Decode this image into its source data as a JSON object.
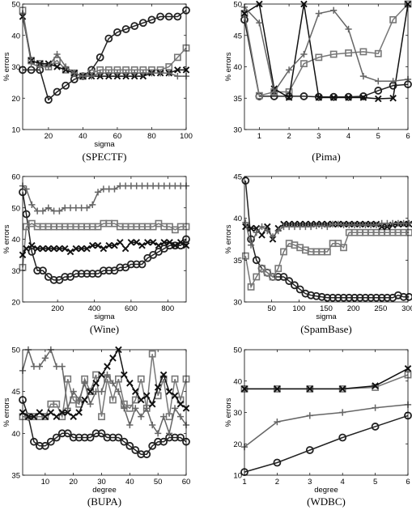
{
  "chart_data": [
    {
      "type": "line",
      "caption": "(SPECTF)",
      "xlabel": "sigma",
      "ylabel": "% errors",
      "xlim": [
        5,
        100
      ],
      "ylim": [
        10,
        50
      ],
      "xticks": [
        20,
        40,
        60,
        80,
        100
      ],
      "yticks": [
        10,
        20,
        30,
        40,
        50
      ],
      "x": [
        5,
        10,
        15,
        20,
        25,
        30,
        35,
        40,
        45,
        50,
        55,
        60,
        65,
        70,
        75,
        80,
        85,
        90,
        95,
        100
      ],
      "series": [
        {
          "marker": "circle",
          "color": "#222222",
          "values": [
            29,
            29,
            29,
            19.5,
            22,
            24,
            26,
            27,
            29,
            33,
            39,
            41,
            42,
            43,
            44,
            45,
            46,
            46,
            46,
            48
          ]
        },
        {
          "marker": "square",
          "color": "#777777",
          "values": [
            48,
            32,
            31,
            30,
            32,
            29,
            28,
            27,
            28,
            29,
            29,
            29,
            29,
            29,
            29,
            29,
            29,
            30,
            33,
            36
          ]
        },
        {
          "marker": "x",
          "color": "#111111",
          "values": [
            46,
            32,
            31,
            31,
            30,
            29,
            28,
            27,
            27,
            27,
            27,
            27,
            27,
            27,
            27,
            28,
            28,
            28,
            29,
            29
          ]
        },
        {
          "marker": "plus",
          "color": "#666666",
          "values": [
            47,
            31,
            30,
            30,
            34,
            30,
            28,
            27,
            27,
            28,
            28,
            28,
            28,
            28,
            28,
            28,
            28,
            28,
            27,
            27
          ]
        }
      ]
    },
    {
      "type": "line",
      "caption": "(Pima)",
      "xlabel": "",
      "ylabel": "% errors",
      "xlim": [
        0.5,
        6
      ],
      "ylim": [
        30,
        50
      ],
      "xticks": [
        1,
        2,
        3,
        4,
        5,
        6
      ],
      "yticks": [
        30,
        35,
        40,
        45,
        50
      ],
      "x": [
        0.5,
        1,
        1.5,
        2,
        2.5,
        3,
        3.5,
        4,
        4.5,
        5,
        5.5,
        6
      ],
      "series": [
        {
          "marker": "circle",
          "color": "#222222",
          "values": [
            47.5,
            35.3,
            35.3,
            35.3,
            35.3,
            35.2,
            35.2,
            35.2,
            35.3,
            36.2,
            37,
            37.2
          ]
        },
        {
          "marker": "square",
          "color": "#777777",
          "values": [
            48.5,
            35.4,
            36,
            36,
            40.5,
            41.5,
            42,
            42.2,
            42.4,
            42.1,
            47.5,
            50
          ]
        },
        {
          "marker": "x",
          "color": "#111111",
          "values": [
            48.5,
            50,
            36.5,
            35.1,
            50,
            35.1,
            35.1,
            35.1,
            35.1,
            34.9,
            35,
            50
          ]
        },
        {
          "marker": "plus",
          "color": "#666666",
          "values": [
            49.5,
            47,
            36,
            39.5,
            42,
            48.5,
            49,
            46,
            38.5,
            37.7,
            37.7,
            38
          ]
        }
      ]
    },
    {
      "type": "line",
      "caption": "(Wine)",
      "xlabel": "sigma",
      "ylabel": "% errors",
      "xlim": [
        10,
        900
      ],
      "ylim": [
        20,
        60
      ],
      "xticks": [
        200,
        400,
        600,
        800
      ],
      "yticks": [
        20,
        30,
        40,
        50,
        60
      ],
      "x": [
        10,
        30,
        60,
        90,
        120,
        150,
        180,
        210,
        240,
        270,
        300,
        330,
        360,
        390,
        420,
        450,
        480,
        510,
        540,
        570,
        600,
        630,
        660,
        690,
        720,
        750,
        780,
        810,
        840,
        870,
        900
      ],
      "series": [
        {
          "marker": "circle",
          "color": "#222222",
          "values": [
            55,
            48,
            36,
            30,
            30,
            28,
            27,
            27,
            28,
            28,
            29,
            29,
            29,
            29,
            29,
            30,
            30,
            30,
            31,
            31,
            32,
            32,
            32,
            34,
            35,
            36,
            37,
            38,
            38,
            38,
            40
          ]
        },
        {
          "marker": "square",
          "color": "#777777",
          "values": [
            31,
            44,
            45,
            44,
            44,
            44,
            44,
            44,
            44,
            44,
            44,
            44,
            44,
            44,
            44,
            45,
            45,
            45,
            44,
            44,
            44,
            44,
            44,
            44,
            44,
            45,
            44,
            44,
            43,
            44,
            44
          ]
        },
        {
          "marker": "x",
          "color": "#111111",
          "values": [
            35,
            37,
            38,
            37,
            37,
            37,
            37,
            37,
            37,
            36,
            37,
            37,
            37,
            38,
            38,
            37,
            38,
            38,
            39,
            37,
            39,
            39,
            38,
            39,
            39,
            38,
            39,
            39,
            38,
            39,
            38
          ]
        },
        {
          "marker": "plus",
          "color": "#666666",
          "values": [
            57,
            56,
            51,
            49,
            49,
            50,
            49,
            49,
            50,
            50,
            50,
            50,
            50,
            51,
            55,
            56,
            56,
            56,
            57,
            57,
            57,
            57,
            57,
            57,
            57,
            57,
            57,
            57,
            57,
            57,
            57
          ]
        }
      ]
    },
    {
      "type": "line",
      "caption": "(SpamBase)",
      "xlabel": "sigma",
      "ylabel": "% errors",
      "xlim": [
        0,
        300
      ],
      "ylim": [
        30,
        45
      ],
      "xticks": [
        50,
        100,
        150,
        200,
        250,
        300
      ],
      "yticks": [
        30,
        35,
        40,
        45
      ],
      "x": [
        2,
        12,
        22,
        32,
        42,
        52,
        62,
        72,
        82,
        92,
        102,
        112,
        122,
        132,
        142,
        152,
        162,
        172,
        182,
        192,
        202,
        212,
        222,
        232,
        242,
        252,
        262,
        272,
        282,
        292,
        302
      ],
      "series": [
        {
          "marker": "circle",
          "color": "#222222",
          "values": [
            44.5,
            37.5,
            35,
            34,
            33.5,
            33,
            33,
            33,
            32.5,
            32,
            31.5,
            31,
            30.8,
            30.7,
            30.6,
            30.5,
            30.5,
            30.5,
            30.5,
            30.5,
            30.5,
            30.5,
            30.5,
            30.5,
            30.5,
            30.5,
            30.5,
            30.5,
            30.8,
            30.6,
            30.6
          ]
        },
        {
          "marker": "square",
          "color": "#777777",
          "values": [
            35.5,
            31.8,
            33,
            34,
            33.5,
            33,
            34,
            36,
            37,
            36.8,
            36.5,
            36.2,
            36,
            36,
            36,
            36,
            37,
            37,
            36.5,
            38.3,
            38.3,
            38.3,
            38.3,
            38.3,
            38.3,
            38.3,
            38.3,
            38.3,
            38.3,
            38.3,
            38.3
          ]
        },
        {
          "marker": "x",
          "color": "#111111",
          "values": [
            39,
            38.8,
            38.8,
            38,
            39,
            37.5,
            38.8,
            39.3,
            39.3,
            39.3,
            39.3,
            39.3,
            39.3,
            39.3,
            39.3,
            39.3,
            39.3,
            39.3,
            39.3,
            39.3,
            39.3,
            39.3,
            39.3,
            39.3,
            39.3,
            39,
            39,
            39.2,
            39.3,
            39.3,
            39.3
          ]
        },
        {
          "marker": "plus",
          "color": "#666666",
          "values": [
            39.5,
            36.8,
            38.3,
            39,
            38.5,
            37.8,
            38.5,
            39,
            39,
            39,
            39,
            39,
            39,
            39.1,
            39.1,
            39,
            39.3,
            39.3,
            39.2,
            39.2,
            39.2,
            39.2,
            39.2,
            39.2,
            39.2,
            39.4,
            39.4,
            39.4,
            39.4,
            39.4,
            39.4
          ]
        }
      ]
    },
    {
      "type": "line",
      "caption": "(BUPA)",
      "xlabel": "degree",
      "ylabel": "% errors",
      "xlim": [
        2,
        60
      ],
      "ylim": [
        35,
        50
      ],
      "xticks": [
        10,
        20,
        30,
        40,
        50,
        60
      ],
      "yticks": [
        35,
        40,
        45,
        50
      ],
      "x": [
        2,
        4,
        6,
        8,
        10,
        12,
        14,
        16,
        18,
        20,
        22,
        24,
        26,
        28,
        30,
        32,
        34,
        36,
        38,
        40,
        42,
        44,
        46,
        48,
        50,
        52,
        54,
        56,
        58,
        60
      ],
      "series": [
        {
          "marker": "circle",
          "color": "#222222",
          "values": [
            44,
            42,
            39,
            38.5,
            38.5,
            39,
            39.5,
            40,
            40,
            39.5,
            39.5,
            39.5,
            39.5,
            40,
            40,
            39.5,
            39.5,
            39.5,
            39,
            38.5,
            38,
            37.5,
            37.5,
            38.5,
            39,
            39,
            39.5,
            39.5,
            39.5,
            39
          ]
        },
        {
          "marker": "square",
          "color": "#777777",
          "values": [
            42,
            42,
            42,
            42,
            42,
            43.5,
            43.5,
            42,
            46.5,
            44,
            43.5,
            46.5,
            45,
            47,
            42,
            46.5,
            44,
            46.5,
            43.5,
            43,
            44,
            46.5,
            43,
            49.5,
            44.5,
            46.5,
            42,
            46.5,
            44,
            46.5
          ]
        },
        {
          "marker": "x",
          "color": "#111111",
          "values": [
            42.5,
            42,
            42,
            42.5,
            42,
            42.5,
            42,
            42.5,
            42.5,
            42,
            42.5,
            44,
            45,
            46,
            47,
            48,
            49,
            50,
            47,
            46,
            45,
            44,
            44.5,
            43.5,
            45.5,
            47,
            45,
            44.5,
            43.5,
            43
          ]
        },
        {
          "marker": "plus",
          "color": "#666666",
          "values": [
            47.5,
            50,
            48,
            48,
            49,
            50,
            48,
            48,
            43,
            45,
            44,
            46,
            43.5,
            45,
            45,
            47,
            46,
            45,
            43,
            41,
            43,
            42,
            43,
            41,
            40,
            42,
            40,
            43,
            42,
            41
          ]
        }
      ]
    },
    {
      "type": "line",
      "caption": "(WDBC)",
      "xlabel": "degree",
      "ylabel": "% errors",
      "xlim": [
        1,
        6
      ],
      "ylim": [
        10,
        50
      ],
      "xticks": [
        1,
        2,
        3,
        4,
        5,
        6
      ],
      "yticks": [
        10,
        20,
        30,
        40,
        50
      ],
      "x": [
        1,
        2,
        3,
        4,
        5,
        6
      ],
      "series": [
        {
          "marker": "circle",
          "color": "#222222",
          "values": [
            11,
            14,
            18,
            22,
            25.5,
            29
          ]
        },
        {
          "marker": "square",
          "color": "#777777",
          "values": [
            37.5,
            37.5,
            37.5,
            37.5,
            38,
            42
          ]
        },
        {
          "marker": "x",
          "color": "#111111",
          "values": [
            37.5,
            37.5,
            37.5,
            37.5,
            38.5,
            44
          ]
        },
        {
          "marker": "plus",
          "color": "#666666",
          "values": [
            19,
            27,
            29,
            30,
            31.5,
            32.5
          ]
        }
      ]
    }
  ]
}
